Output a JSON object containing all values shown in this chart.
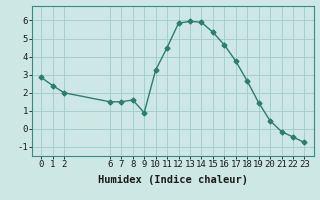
{
  "x": [
    0,
    1,
    2,
    6,
    7,
    8,
    9,
    10,
    11,
    12,
    13,
    14,
    15,
    16,
    17,
    18,
    19,
    20,
    21,
    22,
    23
  ],
  "y": [
    2.85,
    2.4,
    2.0,
    1.5,
    1.5,
    1.6,
    0.9,
    3.25,
    4.5,
    5.85,
    5.95,
    5.9,
    5.35,
    4.65,
    3.75,
    2.65,
    1.45,
    0.45,
    -0.15,
    -0.45,
    -0.75
  ],
  "line_color": "#2d7d6e",
  "bg_color": "#cde8e4",
  "grid_color": "#9eccc7",
  "xlabel": "Humidex (Indice chaleur)",
  "xlabel_fontsize": 7.5,
  "tick_fontsize": 6.5,
  "ylim": [
    -1.5,
    6.8
  ],
  "xlim": [
    -0.8,
    23.8
  ],
  "yticks": [
    -1,
    0,
    1,
    2,
    3,
    4,
    5,
    6
  ],
  "xticks": [
    0,
    1,
    2,
    6,
    7,
    8,
    9,
    10,
    11,
    12,
    13,
    14,
    15,
    16,
    17,
    18,
    19,
    20,
    21,
    22,
    23
  ],
  "marker_size": 2.5,
  "line_width": 1.0
}
